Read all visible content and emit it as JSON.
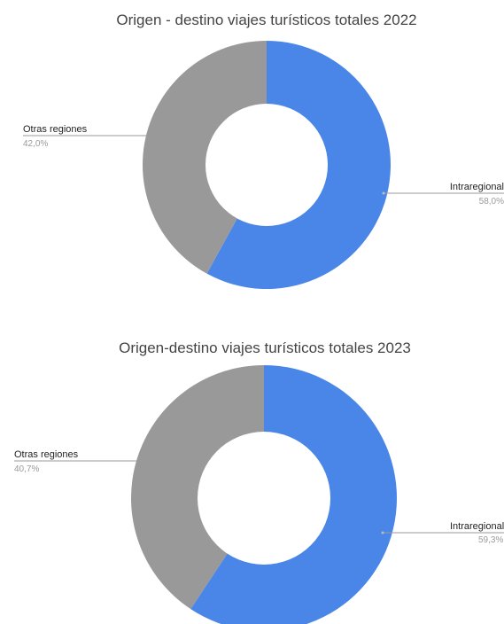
{
  "chart_data": [
    {
      "type": "pie",
      "title": "Origen - destino viajes turísticos totales 2022",
      "colors": [
        "#4a86e8",
        "#999999"
      ],
      "slices": [
        {
          "name": "Intraregional",
          "value": 58.0,
          "label": "58,0%"
        },
        {
          "name": "Otras regiones",
          "value": 42.0,
          "label": "42,0%"
        }
      ]
    },
    {
      "type": "pie",
      "title": "Origen-destino viajes turísticos totales 2023",
      "colors": [
        "#4a86e8",
        "#999999"
      ],
      "slices": [
        {
          "name": "Intraregional",
          "value": 59.3,
          "label": "59,3%"
        },
        {
          "name": "Otras regiones",
          "value": 40.7,
          "label": "40,7%"
        }
      ]
    }
  ]
}
